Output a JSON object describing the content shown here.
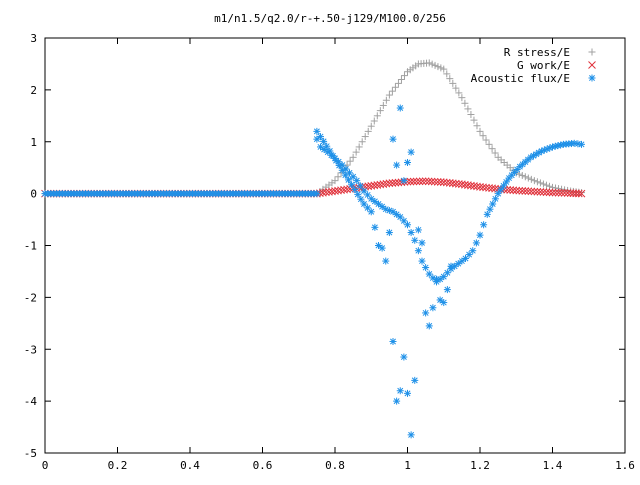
{
  "chart_data": {
    "type": "scatter",
    "title": "m1/n1.5/q2.0/r-+.50-j129/M100.0/256",
    "xlabel": "",
    "ylabel": "",
    "xlim": [
      0,
      1.6
    ],
    "ylim": [
      -5,
      3
    ],
    "x_ticks": [
      "0",
      "0.2",
      "0.4",
      "0.6",
      "0.8",
      "1",
      "1.2",
      "1.4",
      "1.6"
    ],
    "y_ticks": [
      "3",
      "2",
      "1",
      "0",
      "-1",
      "-2",
      "-3",
      "-4",
      "-5"
    ],
    "legend_position": "top-right",
    "grid": false,
    "series": [
      {
        "name": "R stress/E",
        "marker": "plus",
        "color": "#a0a0a0",
        "x": [
          0.75,
          0.8,
          0.85,
          0.9,
          0.95,
          1.0,
          1.03,
          1.06,
          1.1,
          1.15,
          1.2,
          1.25,
          1.3,
          1.35,
          1.4,
          1.45,
          1.48
        ],
        "y": [
          0.0,
          0.25,
          0.7,
          1.3,
          1.9,
          2.35,
          2.5,
          2.52,
          2.4,
          1.85,
          1.2,
          0.7,
          0.4,
          0.25,
          0.12,
          0.05,
          0.02
        ]
      },
      {
        "name": "G work/E",
        "marker": "cross",
        "color": "#e0303a",
        "x": [
          0.75,
          0.8,
          0.85,
          0.9,
          0.95,
          1.0,
          1.05,
          1.1,
          1.15,
          1.2,
          1.25,
          1.3,
          1.35,
          1.4,
          1.45,
          1.48
        ],
        "y": [
          0.0,
          0.05,
          0.1,
          0.15,
          0.2,
          0.23,
          0.24,
          0.22,
          0.18,
          0.13,
          0.09,
          0.06,
          0.04,
          0.02,
          0.01,
          0.0
        ]
      },
      {
        "name": "Acoustic flux/E",
        "marker": "asterisk",
        "color": "#1e90e8",
        "x": [
          0.75,
          0.76,
          0.78,
          0.8,
          0.82,
          0.84,
          0.86,
          0.88,
          0.9,
          0.92,
          0.94,
          0.96,
          0.98,
          1.0,
          1.02,
          1.04,
          1.06,
          1.08,
          1.1,
          1.12,
          1.14,
          1.16,
          1.18,
          1.2,
          1.22,
          1.25,
          1.28,
          1.31,
          1.34,
          1.37,
          1.4,
          1.43,
          1.46,
          1.48,
          0.75,
          0.76,
          0.88,
          0.9,
          0.91,
          0.92,
          0.93,
          0.94,
          0.95,
          0.96,
          0.97,
          0.98,
          0.99,
          1.0,
          1.01,
          1.02,
          1.03,
          1.04,
          1.05,
          1.06,
          1.07,
          1.08,
          1.09,
          1.1,
          1.11,
          1.12,
          0.96,
          0.97,
          0.98,
          0.99,
          1.0,
          1.01
        ],
        "y": [
          1.05,
          0.9,
          0.8,
          0.68,
          0.55,
          0.4,
          0.25,
          0.05,
          -0.1,
          -0.2,
          -0.3,
          -0.35,
          -0.45,
          -0.6,
          -0.9,
          -1.3,
          -1.55,
          -1.7,
          -1.6,
          -1.45,
          -1.35,
          -1.25,
          -1.1,
          -0.8,
          -0.4,
          0.0,
          0.3,
          0.52,
          0.7,
          0.82,
          0.9,
          0.95,
          0.97,
          0.95,
          1.2,
          1.1,
          -0.2,
          -0.35,
          -0.65,
          -1.0,
          -1.05,
          -1.3,
          -0.75,
          -2.85,
          -4.0,
          -3.8,
          -3.15,
          -3.85,
          -4.65,
          -3.6,
          -0.7,
          -0.95,
          -2.3,
          -2.55,
          -2.2,
          -1.65,
          -2.05,
          -2.1,
          -1.85,
          -1.4,
          1.05,
          0.55,
          1.65,
          0.25,
          0.6,
          0.8
        ]
      }
    ]
  }
}
